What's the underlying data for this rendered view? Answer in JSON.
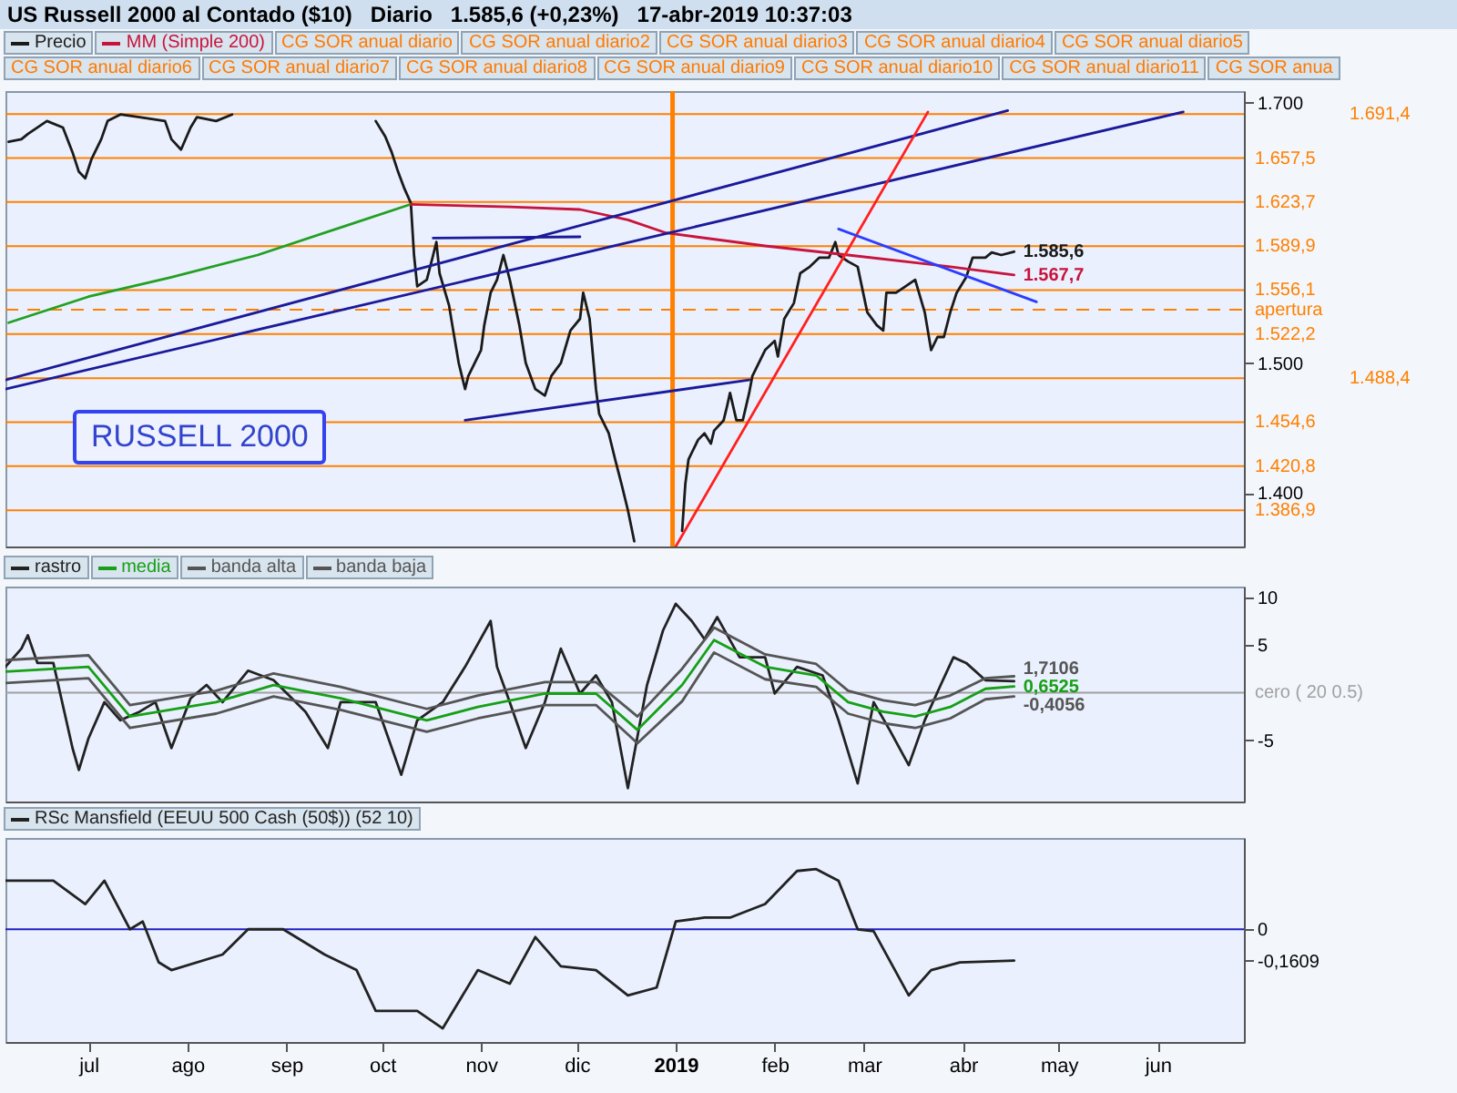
{
  "chart_data": [
    {
      "type": "line",
      "title": "US Russell 2000 al Contado ($10)   Diario   1.585,6 (+0,23%)   17-abr-2019 10:37:03",
      "subtitle": "RUSSELL 2000",
      "legend": "top left",
      "tick_labels": "y",
      "xlim": [
        "2018-06-05",
        "2019-06-28"
      ],
      "ylim": [
        1359,
        1709
      ],
      "yticks": [
        {
          "value": 1400,
          "label": "1.400"
        },
        {
          "value": 1500,
          "label": "1.500"
        },
        {
          "value": 1700,
          "label": "1.700"
        }
      ],
      "series": [
        {
          "name": "Precio",
          "color": "#1a1a1a",
          "x": [
            "2018-06-06",
            "2018-06-10",
            "2018-06-12",
            "2018-06-18",
            "2018-06-23",
            "2018-06-26",
            "2018-06-28",
            "2018-06-30",
            "2018-07-02",
            "2018-07-05",
            "2018-07-07",
            "2018-07-11",
            "2018-07-17",
            "2018-07-25",
            "2018-07-27",
            "2018-07-30",
            "2018-08-02",
            "2018-08-04",
            "2018-08-10",
            "2018-08-15",
            "2018-08-23",
            "2018-09-29",
            "2018-10-02",
            "2018-10-04",
            "2018-10-06",
            "2018-10-08",
            "2018-10-10",
            "2018-10-11",
            "2018-10-12",
            "2018-10-15",
            "2018-10-17",
            "2018-10-18",
            "2018-10-19",
            "2018-10-22",
            "2018-10-23",
            "2018-10-25",
            "2018-10-27",
            "2018-10-28",
            "2018-10-30",
            "2018-11-01",
            "2018-11-02",
            "2018-11-04",
            "2018-11-06",
            "2018-11-08",
            "2018-11-10",
            "2018-11-13",
            "2018-11-15",
            "2018-11-18",
            "2018-11-21",
            "2018-11-23",
            "2018-11-26",
            "2018-11-29",
            "2018-12-02",
            "2018-12-03",
            "2018-12-05",
            "2018-12-07",
            "2018-12-08",
            "2018-12-11",
            "2018-12-13",
            "2018-12-15",
            "2018-12-17",
            "2018-12-19",
            "2018-12-26",
            "2019-01-03",
            "2019-01-04",
            "2019-01-05",
            "2019-01-08",
            "2019-01-10",
            "2019-01-12",
            "2019-01-13",
            "2019-01-16",
            "2019-01-17",
            "2019-01-18",
            "2019-01-20",
            "2019-01-22",
            "2019-01-24",
            "2019-01-25",
            "2019-01-27",
            "2019-01-29",
            "2019-02-01",
            "2019-02-02",
            "2019-02-04",
            "2019-02-07",
            "2019-02-09",
            "2019-02-12",
            "2019-02-15",
            "2019-02-18",
            "2019-02-20",
            "2019-02-21",
            "2019-02-24",
            "2019-02-27",
            "2019-03-02",
            "2019-03-05",
            "2019-03-07",
            "2019-03-08",
            "2019-03-11",
            "2019-03-14",
            "2019-03-17",
            "2019-03-20",
            "2019-03-22",
            "2019-03-24",
            "2019-03-26",
            "2019-03-28",
            "2019-03-30",
            "2019-04-02",
            "2019-04-04",
            "2019-04-08",
            "2019-04-10",
            "2019-04-13",
            "2019-04-17"
          ],
          "values": [
            1670,
            1672,
            1676,
            1686,
            1681,
            1662,
            1647,
            1642,
            1657,
            1672,
            1686,
            1691,
            1689,
            1686,
            1672,
            1664,
            1681,
            1689,
            1686,
            1691,
            null,
            1686,
            1674,
            1662,
            1647,
            1634,
            1623,
            1583,
            1559,
            1564,
            1583,
            1593,
            1569,
            1544,
            1529,
            1500,
            1480,
            1490,
            1500,
            1510,
            1529,
            1554,
            1564,
            1583,
            1564,
            1529,
            1500,
            1480,
            1475,
            1490,
            1500,
            1525,
            1534,
            1554,
            1534,
            1480,
            1461,
            1446,
            1426,
            1407,
            1387,
            1363,
            null,
            1371,
            1407,
            1426,
            1441,
            1446,
            1438,
            1448,
            1456,
            1466,
            1477,
            1456,
            1456,
            1477,
            1490,
            1500,
            1510,
            1517,
            1505,
            1534,
            1546,
            1569,
            1574,
            1581,
            1581,
            1593,
            1583,
            1578,
            1574,
            1539,
            1529,
            1525,
            1554,
            1554,
            1559,
            1564,
            1539,
            1510,
            1520,
            1520,
            1539,
            1554,
            1566,
            1581,
            1581,
            1585,
            1583,
            1585.6
          ],
          "value_labels": [
            null,
            null,
            null,
            null,
            null,
            null,
            null,
            null,
            null,
            null,
            null,
            null,
            null,
            null,
            null,
            null,
            null,
            null,
            null,
            null,
            null,
            null,
            null,
            null,
            null,
            null,
            null,
            null,
            null,
            null,
            null,
            null,
            null,
            null,
            null,
            null,
            null,
            null,
            null,
            null,
            null,
            null,
            null,
            null,
            null,
            null,
            null,
            null,
            null,
            null,
            null,
            null,
            null,
            null,
            null,
            null,
            null,
            null,
            null,
            null,
            null,
            null,
            null,
            null,
            null,
            null,
            null,
            null,
            null,
            null,
            null,
            null,
            null,
            null,
            null,
            null,
            null,
            null,
            null,
            null,
            null,
            null,
            null,
            null,
            null,
            null,
            null,
            null,
            null,
            null,
            null,
            null,
            null,
            null,
            null,
            null,
            null,
            null,
            null,
            null,
            null,
            null,
            null,
            null,
            null,
            null,
            null,
            null,
            null,
            "1.585,6"
          ]
        },
        {
          "color": "#22a022",
          "x": [
            "2018-06-06",
            "2018-07-01",
            "2018-07-27",
            "2018-08-23",
            "2018-09-19",
            "2018-10-10"
          ],
          "values": [
            1531,
            1551,
            1566,
            1583,
            1605,
            1622
          ]
        },
        {
          "name": "MM (Simple 200)",
          "color": "#c8143c",
          "x": [
            "2018-10-10",
            "2018-11-10",
            "2018-12-02",
            "2018-12-17",
            "2018-12-29",
            "2019-01-29",
            "2019-02-24",
            "2019-03-28",
            "2019-04-17"
          ],
          "values": [
            1622,
            1620,
            1618,
            1610,
            1600,
            1590,
            1583,
            1574,
            1567.7
          ],
          "value_labels": [
            null,
            null,
            null,
            null,
            null,
            null,
            null,
            null,
            "1.567,7"
          ]
        },
        {
          "color": "#1a1a9a",
          "x": [
            "2018-06-05",
            "2019-04-15"
          ],
          "values": [
            1487,
            1694
          ]
        },
        {
          "color": "#1a1a9a",
          "x": [
            "2018-06-05",
            "2019-06-09"
          ],
          "values": [
            1480,
            1693
          ]
        },
        {
          "color": "#ff2020",
          "x": [
            "2019-01-01",
            "2019-03-21"
          ],
          "values": [
            1359,
            1693
          ]
        },
        {
          "color": "#2a3cff",
          "x": [
            "2019-02-21",
            "2019-04-24"
          ],
          "values": [
            1603,
            1547
          ]
        },
        {
          "color": "#1a1a9a",
          "x": [
            "2018-10-17",
            "2018-12-02"
          ],
          "values": [
            1596,
            1597
          ]
        },
        {
          "color": "#1a1a9a",
          "x": [
            "2018-10-27",
            "2019-01-24"
          ],
          "values": [
            1456,
            1487
          ]
        }
      ],
      "ref_lines": [
        {
          "axis": "x",
          "value": "2018-12-31",
          "color": "#ff8000"
        },
        {
          "axis": "y",
          "value": 1691.4,
          "label": "1.691,4",
          "color": "#ff8000"
        },
        {
          "axis": "y",
          "value": 1657.5,
          "label": "1.657,5",
          "color": "#ff8000"
        },
        {
          "axis": "y",
          "value": 1623.7,
          "label": "1.623,7",
          "color": "#ff8000"
        },
        {
          "axis": "y",
          "value": 1589.9,
          "label": "1.589,9",
          "color": "#ff8000"
        },
        {
          "axis": "y",
          "value": 1556.1,
          "label": "1.556,1",
          "color": "#ff8000"
        },
        {
          "axis": "y",
          "value": 1541,
          "label": "apertura",
          "color": "#ff8000",
          "line_style": "dashed"
        },
        {
          "axis": "y",
          "value": 1522.2,
          "label": "1.522,2",
          "color": "#ff8000"
        },
        {
          "axis": "y",
          "value": 1488.4,
          "label": "1.488,4",
          "color": "#ff8000"
        },
        {
          "axis": "y",
          "value": 1454.6,
          "label": "1.454,6",
          "color": "#ff8000"
        },
        {
          "axis": "y",
          "value": 1420.8,
          "label": "1.420,8",
          "color": "#ff8000"
        },
        {
          "axis": "y",
          "value": 1386.9,
          "label": "1.386,9",
          "color": "#ff8000"
        }
      ],
      "annotations": [
        "CG SOR anual diario",
        "CG SOR anual diario2",
        "CG SOR anual diario3",
        "CG SOR anual diario4",
        "CG SOR anual diario5",
        "CG SOR anual diario6",
        "CG SOR anual diario7",
        "CG SOR anual diario8",
        "CG SOR anual diario9",
        "CG SOR anual diario10",
        "CG SOR anual diario11",
        "CG SOR anua"
      ]
    },
    {
      "type": "line",
      "legend": "top left",
      "tick_labels": "y",
      "xlim": [
        "2018-06-05",
        "2019-06-28"
      ],
      "ylim": [
        -11.4,
        11.1
      ],
      "yticks": [
        10,
        5,
        -5
      ],
      "series": [
        {
          "name": "rastro",
          "color": "#222222",
          "x": [
            "2018-06-05",
            "2018-06-10",
            "2018-06-12",
            "2018-06-15",
            "2018-06-20",
            "2018-06-26",
            "2018-06-28",
            "2018-07-01",
            "2018-07-06",
            "2018-07-11",
            "2018-07-17",
            "2018-07-22",
            "2018-07-27",
            "2018-08-02",
            "2018-08-07",
            "2018-08-12",
            "2018-08-20",
            "2018-08-28",
            "2018-09-07",
            "2018-09-14",
            "2018-09-18",
            "2018-09-29",
            "2018-10-07",
            "2018-10-12",
            "2018-10-20",
            "2018-10-27",
            "2018-11-04",
            "2018-11-06",
            "2018-11-10",
            "2018-11-15",
            "2018-11-21",
            "2018-11-26",
            "2018-12-02",
            "2018-12-07",
            "2018-12-12",
            "2018-12-17",
            "2018-12-23",
            "2018-12-28",
            "2019-01-01",
            "2019-01-06",
            "2019-01-10",
            "2019-01-14",
            "2019-01-21",
            "2019-01-29",
            "2019-02-01",
            "2019-02-08",
            "2019-02-16",
            "2019-02-21",
            "2019-02-27",
            "2019-03-04",
            "2019-03-09",
            "2019-03-15",
            "2019-03-20",
            "2019-03-25",
            "2019-03-29",
            "2019-04-02",
            "2019-04-08",
            "2019-04-17"
          ],
          "values": [
            2.7,
            4.6,
            6.0,
            3.1,
            3.1,
            -5.8,
            -8.1,
            -4.8,
            -1.0,
            -2.9,
            -2.0,
            -1.0,
            -5.8,
            -0.6,
            0.8,
            -1.0,
            2.3,
            1.3,
            -2.0,
            -5.8,
            -1.0,
            -1.0,
            -8.6,
            -2.9,
            -1.0,
            2.7,
            7.5,
            2.7,
            -1.0,
            -5.8,
            -1.0,
            4.6,
            -0.1,
            1.8,
            -1.0,
            -10.0,
            0.8,
            6.5,
            9.3,
            7.5,
            5.6,
            7.9,
            3.7,
            3.7,
            -0.1,
            2.7,
            1.8,
            -2.9,
            -9.5,
            -1.0,
            -3.9,
            -7.6,
            -2.9,
            0.8,
            3.7,
            3.1,
            1.3,
            1.2
          ]
        },
        {
          "name": "media",
          "color": "#16a016",
          "x": [
            "2018-06-05",
            "2018-07-01",
            "2018-07-14",
            "2018-08-10",
            "2018-08-28",
            "2018-09-18",
            "2018-10-15",
            "2018-10-31",
            "2018-11-21",
            "2018-12-07",
            "2018-12-20",
            "2019-01-03",
            "2019-01-13",
            "2019-01-29",
            "2019-02-14",
            "2019-02-24",
            "2019-03-07",
            "2019-03-17",
            "2019-03-28",
            "2019-04-08",
            "2019-04-17"
          ],
          "values": [
            2.2,
            2.7,
            -2.5,
            -1.0,
            0.8,
            -0.6,
            -2.9,
            -1.5,
            -0.1,
            -0.1,
            -3.9,
            0.8,
            5.5,
            2.7,
            1.8,
            -1.0,
            -2.0,
            -2.5,
            -1.5,
            0.4,
            0.6525
          ],
          "value_labels": [
            null,
            null,
            null,
            null,
            null,
            null,
            null,
            null,
            null,
            null,
            null,
            null,
            null,
            null,
            null,
            null,
            null,
            null,
            null,
            null,
            "0,6525"
          ]
        },
        {
          "name": "banda alta",
          "color": "#555555",
          "x": [
            "2018-06-05",
            "2018-07-01",
            "2018-07-14",
            "2018-08-10",
            "2018-08-28",
            "2018-09-18",
            "2018-10-15",
            "2018-10-31",
            "2018-11-21",
            "2018-12-07",
            "2018-12-20",
            "2019-01-03",
            "2019-01-13",
            "2019-01-29",
            "2019-02-14",
            "2019-02-24",
            "2019-03-07",
            "2019-03-17",
            "2019-03-28",
            "2019-04-08",
            "2019-04-17"
          ],
          "values": [
            3.4,
            3.9,
            -1.3,
            0.2,
            2.0,
            0.6,
            -1.7,
            -0.3,
            1.1,
            1.1,
            -2.5,
            2.5,
            6.8,
            4.0,
            3.0,
            0.2,
            -0.8,
            -1.3,
            -0.3,
            1.5,
            1.7106
          ],
          "value_labels": [
            null,
            null,
            null,
            null,
            null,
            null,
            null,
            null,
            null,
            null,
            null,
            null,
            null,
            null,
            null,
            null,
            null,
            null,
            null,
            null,
            "1,7106"
          ]
        },
        {
          "name": "banda baja",
          "color": "#555555",
          "x": [
            "2018-06-05",
            "2018-07-01",
            "2018-07-14",
            "2018-08-10",
            "2018-08-28",
            "2018-09-18",
            "2018-10-15",
            "2018-10-31",
            "2018-11-21",
            "2018-12-07",
            "2018-12-20",
            "2019-01-03",
            "2019-01-13",
            "2019-01-29",
            "2019-02-14",
            "2019-02-24",
            "2019-03-07",
            "2019-03-17",
            "2019-03-28",
            "2019-04-08",
            "2019-04-17"
          ],
          "values": [
            1.0,
            1.5,
            -3.7,
            -2.2,
            -0.4,
            -1.8,
            -4.1,
            -2.7,
            -1.3,
            -1.3,
            -5.3,
            -0.9,
            4.2,
            1.4,
            0.6,
            -2.2,
            -3.2,
            -3.7,
            -2.7,
            -0.7,
            -0.4056
          ],
          "value_labels": [
            null,
            null,
            null,
            null,
            null,
            null,
            null,
            null,
            null,
            null,
            null,
            null,
            null,
            null,
            null,
            null,
            null,
            null,
            null,
            null,
            "-0,4056"
          ]
        }
      ],
      "ref_lines": [
        {
          "axis": "y",
          "value": 0,
          "label": "cero ( 20 0.5)",
          "color": "#a0a0a0"
        }
      ]
    },
    {
      "type": "line",
      "legend": "top left",
      "xlim": [
        "2018-06-05",
        "2019-06-28"
      ],
      "xticks": [
        {
          "value": "2018-07-01",
          "label": "jul"
        },
        {
          "value": "2018-08-01",
          "label": "ago"
        },
        {
          "value": "2018-09-01",
          "label": "sep"
        },
        {
          "value": "2018-10-01",
          "label": "oct"
        },
        {
          "value": "2018-11-01",
          "label": "nov"
        },
        {
          "value": "2018-12-01",
          "label": "dic"
        },
        {
          "value": "2019-01-01",
          "label": "2019"
        },
        {
          "value": "2019-02-01",
          "label": "feb"
        },
        {
          "value": "2019-03-01",
          "label": "mar"
        },
        {
          "value": "2019-04-01",
          "label": "abr"
        },
        {
          "value": "2019-05-01",
          "label": "may"
        },
        {
          "value": "2019-06-01",
          "label": "jun"
        }
      ],
      "ylim": [
        -0.58,
        0.47
      ],
      "yticks": [
        {
          "value": -0.1609,
          "label": "-0,1609"
        },
        0
      ],
      "series": [
        {
          "name": "RSc Mansfield (EEUU 500 Cash (50$)) (52 10)",
          "color": "#222222",
          "x": [
            "2018-06-05",
            "2018-06-20",
            "2018-06-30",
            "2018-07-06",
            "2018-07-14",
            "2018-07-18",
            "2018-07-23",
            "2018-07-27",
            "2018-08-12",
            "2018-08-20",
            "2018-08-31",
            "2018-09-13",
            "2018-09-23",
            "2018-09-29",
            "2018-10-12",
            "2018-10-20",
            "2018-10-31",
            "2018-11-10",
            "2018-11-18",
            "2018-11-26",
            "2018-12-07",
            "2018-12-17",
            "2018-12-26",
            "2019-01-01",
            "2019-01-10",
            "2019-01-18",
            "2019-01-29",
            "2019-02-08",
            "2019-02-14",
            "2019-02-21",
            "2019-02-27",
            "2019-03-04",
            "2019-03-15",
            "2019-03-22",
            "2019-03-31",
            "2019-04-17"
          ],
          "values": [
            0.25,
            0.25,
            0.13,
            0.25,
            0,
            0.04,
            -0.17,
            -0.21,
            -0.13,
            0,
            0,
            -0.13,
            -0.21,
            -0.42,
            -0.42,
            -0.51,
            -0.21,
            -0.28,
            -0.04,
            -0.19,
            -0.21,
            -0.34,
            -0.3,
            0.04,
            0.06,
            0.06,
            0.13,
            0.3,
            0.31,
            0.25,
            0,
            -0.01,
            -0.34,
            -0.21,
            -0.17,
            -0.1609
          ]
        }
      ],
      "ref_lines": [
        {
          "axis": "y",
          "value": 0,
          "color": "#2020c0"
        }
      ]
    }
  ]
}
